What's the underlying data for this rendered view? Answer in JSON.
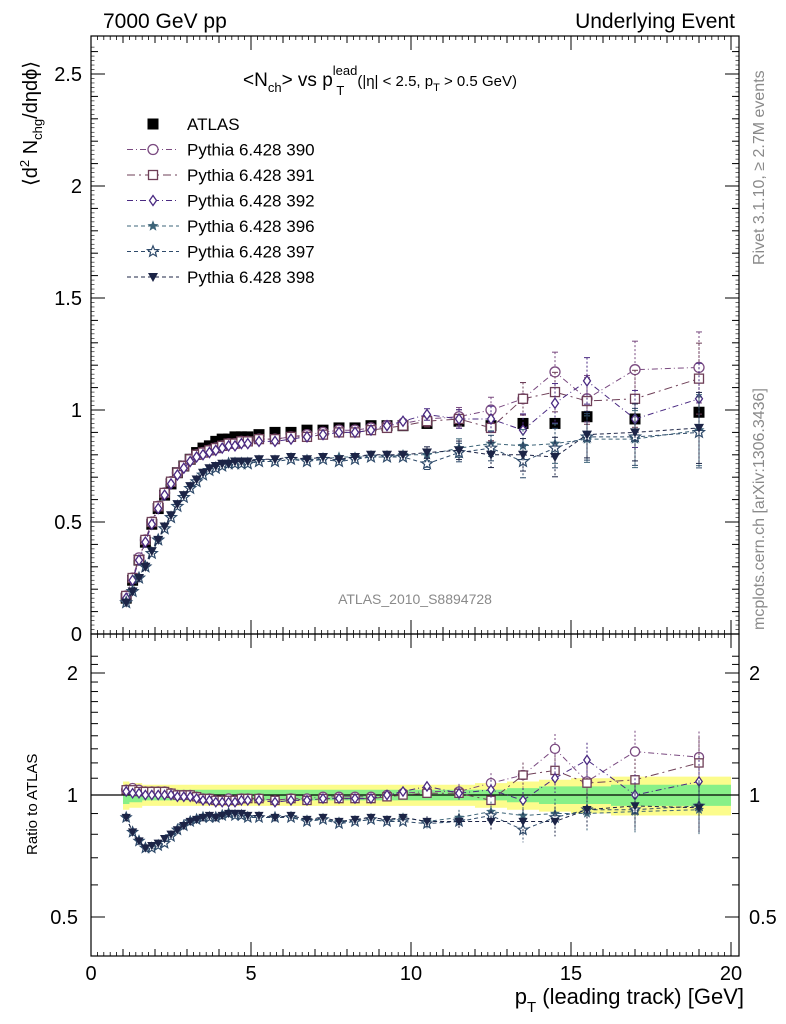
{
  "header": {
    "left": "7000 GeV pp",
    "right": "Underlying Event"
  },
  "side": {
    "rivet": "Rivet 3.1.10, ≥ 2.7M events",
    "source": "mcplots.cern.ch [arXiv:1306.3436]"
  },
  "plot": {
    "title_main": "<N",
    "title_ch": "ch",
    "title_vs": "> vs p",
    "title_sup": "lead",
    "title_sub": "T",
    "title_cut": "(|η| < 2.5, p",
    "title_cut_sub": "T",
    "title_cut_end": " > 0.5 GeV)",
    "ylabel_a": "⟨d",
    "ylabel_2": "2",
    "ylabel_b": " N",
    "ylabel_chg": "chg",
    "ylabel_c": "/dηdϕ⟩",
    "watermark": "ATLAS_2010_S8894728",
    "ratio_label": "Ratio to ATLAS",
    "xlabel_a": "p",
    "xlabel_sub": "T",
    "xlabel_b": " (leading track) [GeV]"
  },
  "colors": {
    "atlas": "#000000",
    "p390": "#7a4a80",
    "p391": "#6e3f57",
    "p392": "#4a2a82",
    "p396": "#3d6478",
    "p397": "#2e4a6a",
    "p398": "#1c2446",
    "band_stat": "#88f088",
    "band_tot": "#fcfc8c"
  },
  "chart_data": {
    "type": "scatter",
    "xlabel": "pT (leading track) [GeV]",
    "ylabel": "⟨d2 Nchg/dηdϕ⟩",
    "xlim": [
      0,
      20
    ],
    "ylim": [
      0,
      2.65
    ],
    "ratio_ylim": [
      0.35,
      2.25
    ],
    "x_ticks": [
      "0",
      "5",
      "10",
      "15",
      "20"
    ],
    "y_ticks": [
      "0",
      "0.5",
      "1",
      "1.5",
      "2",
      "2.5"
    ],
    "ratio_ticks": [
      "0.5",
      "1",
      "2"
    ],
    "x": [
      1.1,
      1.3,
      1.5,
      1.7,
      1.9,
      2.1,
      2.3,
      2.5,
      2.7,
      2.9,
      3.1,
      3.3,
      3.5,
      3.7,
      3.9,
      4.1,
      4.3,
      4.5,
      4.7,
      4.9,
      5.25,
      5.75,
      6.25,
      6.75,
      7.25,
      7.75,
      8.25,
      8.75,
      9.25,
      9.75,
      10.5,
      11.5,
      12.5,
      13.5,
      14.5,
      15.5,
      17.0,
      19.0
    ],
    "legend": [
      "ATLAS",
      "Pythia 6.428 390",
      "Pythia 6.428 391",
      "Pythia 6.428 392",
      "Pythia 6.428 396",
      "Pythia 6.428 397",
      "Pythia 6.428 398"
    ],
    "series": [
      {
        "name": "ATLAS",
        "marker": "square-filled",
        "values": [
          0.16,
          0.24,
          0.33,
          0.41,
          0.49,
          0.56,
          0.62,
          0.67,
          0.72,
          0.75,
          0.78,
          0.81,
          0.83,
          0.84,
          0.86,
          0.87,
          0.87,
          0.88,
          0.88,
          0.88,
          0.89,
          0.9,
          0.9,
          0.91,
          0.91,
          0.92,
          0.92,
          0.93,
          0.93,
          0.93,
          0.94,
          0.95,
          0.93,
          0.94,
          0.94,
          0.97,
          0.96,
          0.99
        ]
      },
      {
        "name": "Pythia 6.428 390",
        "marker": "circle-open",
        "values": [
          0.17,
          0.25,
          0.34,
          0.42,
          0.5,
          0.57,
          0.63,
          0.68,
          0.72,
          0.75,
          0.78,
          0.8,
          0.81,
          0.82,
          0.83,
          0.84,
          0.85,
          0.85,
          0.86,
          0.86,
          0.87,
          0.87,
          0.88,
          0.89,
          0.9,
          0.91,
          0.91,
          0.92,
          0.93,
          0.94,
          0.96,
          0.97,
          1.0,
          1.05,
          1.17,
          1.05,
          1.18,
          1.19
        ]
      },
      {
        "name": "Pythia 6.428 391",
        "marker": "square-open",
        "values": [
          0.17,
          0.25,
          0.33,
          0.42,
          0.5,
          0.57,
          0.63,
          0.68,
          0.72,
          0.75,
          0.78,
          0.8,
          0.81,
          0.82,
          0.83,
          0.84,
          0.85,
          0.85,
          0.86,
          0.86,
          0.87,
          0.87,
          0.88,
          0.88,
          0.89,
          0.9,
          0.9,
          0.91,
          0.92,
          0.93,
          0.95,
          0.96,
          0.92,
          1.05,
          1.08,
          1.04,
          1.05,
          1.14
        ]
      },
      {
        "name": "Pythia 6.428 392",
        "marker": "diamond-open",
        "values": [
          0.16,
          0.24,
          0.33,
          0.41,
          0.49,
          0.56,
          0.62,
          0.67,
          0.71,
          0.74,
          0.77,
          0.79,
          0.8,
          0.81,
          0.82,
          0.83,
          0.84,
          0.84,
          0.85,
          0.85,
          0.86,
          0.86,
          0.87,
          0.88,
          0.89,
          0.9,
          0.9,
          0.91,
          0.93,
          0.95,
          0.98,
          0.96,
          0.96,
          0.91,
          1.03,
          1.13,
          0.96,
          1.05
        ]
      },
      {
        "name": "Pythia 6.428 396",
        "marker": "star-filled",
        "values": [
          0.14,
          0.19,
          0.25,
          0.3,
          0.36,
          0.42,
          0.47,
          0.52,
          0.57,
          0.61,
          0.65,
          0.68,
          0.71,
          0.73,
          0.74,
          0.75,
          0.76,
          0.76,
          0.76,
          0.76,
          0.77,
          0.77,
          0.78,
          0.78,
          0.78,
          0.79,
          0.79,
          0.79,
          0.79,
          0.8,
          0.8,
          0.83,
          0.85,
          0.84,
          0.85,
          0.87,
          0.87,
          0.91
        ]
      },
      {
        "name": "Pythia 6.428 397",
        "marker": "star-open",
        "values": [
          0.14,
          0.19,
          0.25,
          0.3,
          0.36,
          0.42,
          0.47,
          0.52,
          0.57,
          0.61,
          0.65,
          0.68,
          0.71,
          0.73,
          0.74,
          0.75,
          0.76,
          0.76,
          0.76,
          0.76,
          0.77,
          0.77,
          0.78,
          0.77,
          0.78,
          0.77,
          0.78,
          0.79,
          0.79,
          0.79,
          0.76,
          0.81,
          0.83,
          0.77,
          0.83,
          0.88,
          0.88,
          0.9
        ]
      },
      {
        "name": "Pythia 6.428 398",
        "marker": "triangle-down-filled",
        "values": [
          0.14,
          0.19,
          0.25,
          0.3,
          0.37,
          0.42,
          0.48,
          0.53,
          0.58,
          0.62,
          0.66,
          0.69,
          0.72,
          0.74,
          0.75,
          0.76,
          0.76,
          0.77,
          0.77,
          0.77,
          0.78,
          0.78,
          0.79,
          0.78,
          0.79,
          0.78,
          0.79,
          0.8,
          0.8,
          0.8,
          0.81,
          0.82,
          0.8,
          0.8,
          0.79,
          0.89,
          0.9,
          0.92
        ]
      }
    ],
    "ratio_series": [
      {
        "name": "Pythia 6.428 390",
        "values": [
          1.03,
          1.04,
          1.03,
          1.02,
          1.02,
          1.02,
          1.02,
          1.01,
          1.0,
          1.0,
          1.0,
          0.99,
          0.98,
          0.98,
          0.97,
          0.97,
          0.98,
          0.97,
          0.98,
          0.98,
          0.98,
          0.97,
          0.98,
          0.98,
          0.99,
          0.99,
          0.99,
          0.99,
          1.0,
          1.01,
          1.02,
          1.02,
          1.07,
          1.12,
          1.3,
          1.08,
          1.28,
          1.24
        ]
      },
      {
        "name": "Pythia 6.428 391",
        "values": [
          1.03,
          1.03,
          1.02,
          1.02,
          1.02,
          1.02,
          1.02,
          1.01,
          1.0,
          1.0,
          1.0,
          0.99,
          0.98,
          0.98,
          0.97,
          0.97,
          0.97,
          0.97,
          0.98,
          0.98,
          0.98,
          0.97,
          0.98,
          0.97,
          0.98,
          0.98,
          0.98,
          0.98,
          0.99,
          1.0,
          1.01,
          1.01,
          0.97,
          1.12,
          1.15,
          1.07,
          1.09,
          1.2
        ]
      },
      {
        "name": "Pythia 6.428 392",
        "values": [
          1.02,
          1.01,
          1.01,
          1.0,
          1.0,
          1.0,
          1.0,
          1.0,
          0.99,
          0.99,
          0.99,
          0.98,
          0.97,
          0.97,
          0.96,
          0.96,
          0.96,
          0.96,
          0.97,
          0.97,
          0.97,
          0.96,
          0.97,
          0.97,
          0.98,
          0.98,
          0.98,
          0.98,
          1.0,
          1.02,
          1.05,
          1.01,
          1.03,
          0.97,
          1.1,
          1.22,
          1.0,
          1.08
        ]
      },
      {
        "name": "Pythia 6.428 396",
        "values": [
          0.88,
          0.81,
          0.77,
          0.74,
          0.74,
          0.75,
          0.76,
          0.79,
          0.82,
          0.84,
          0.86,
          0.87,
          0.88,
          0.88,
          0.88,
          0.89,
          0.9,
          0.89,
          0.89,
          0.88,
          0.88,
          0.88,
          0.88,
          0.87,
          0.87,
          0.86,
          0.86,
          0.87,
          0.86,
          0.88,
          0.86,
          0.88,
          0.91,
          0.89,
          0.9,
          0.9,
          0.91,
          0.92
        ]
      },
      {
        "name": "Pythia 6.428 397",
        "values": [
          0.88,
          0.81,
          0.77,
          0.74,
          0.74,
          0.75,
          0.76,
          0.79,
          0.82,
          0.84,
          0.86,
          0.87,
          0.88,
          0.88,
          0.88,
          0.89,
          0.9,
          0.89,
          0.89,
          0.88,
          0.88,
          0.88,
          0.88,
          0.86,
          0.87,
          0.85,
          0.86,
          0.87,
          0.86,
          0.86,
          0.85,
          0.86,
          0.89,
          0.82,
          0.88,
          0.92,
          0.92,
          0.94
        ]
      },
      {
        "name": "Pythia 6.428 398",
        "values": [
          0.88,
          0.81,
          0.77,
          0.74,
          0.75,
          0.76,
          0.78,
          0.8,
          0.82,
          0.84,
          0.86,
          0.87,
          0.88,
          0.89,
          0.88,
          0.89,
          0.9,
          0.9,
          0.9,
          0.89,
          0.89,
          0.88,
          0.89,
          0.87,
          0.88,
          0.86,
          0.87,
          0.88,
          0.87,
          0.88,
          0.86,
          0.86,
          0.86,
          0.86,
          0.86,
          0.92,
          0.94,
          0.93
        ]
      }
    ],
    "ratio_band_stat": [
      0.05,
      0.04,
      0.04,
      0.03,
      0.03,
      0.03,
      0.03,
      0.03,
      0.03,
      0.03,
      0.03,
      0.03,
      0.03,
      0.03,
      0.03,
      0.03,
      0.03,
      0.03,
      0.03,
      0.03,
      0.03,
      0.03,
      0.03,
      0.03,
      0.03,
      0.03,
      0.03,
      0.03,
      0.03,
      0.03,
      0.03,
      0.03,
      0.03,
      0.04,
      0.05,
      0.05,
      0.06,
      0.06
    ],
    "ratio_band_tot": [
      0.08,
      0.07,
      0.07,
      0.06,
      0.06,
      0.06,
      0.06,
      0.06,
      0.06,
      0.06,
      0.06,
      0.06,
      0.06,
      0.06,
      0.06,
      0.06,
      0.06,
      0.06,
      0.06,
      0.06,
      0.06,
      0.06,
      0.06,
      0.06,
      0.06,
      0.06,
      0.06,
      0.06,
      0.06,
      0.06,
      0.06,
      0.06,
      0.07,
      0.08,
      0.09,
      0.1,
      0.11,
      0.11
    ]
  }
}
